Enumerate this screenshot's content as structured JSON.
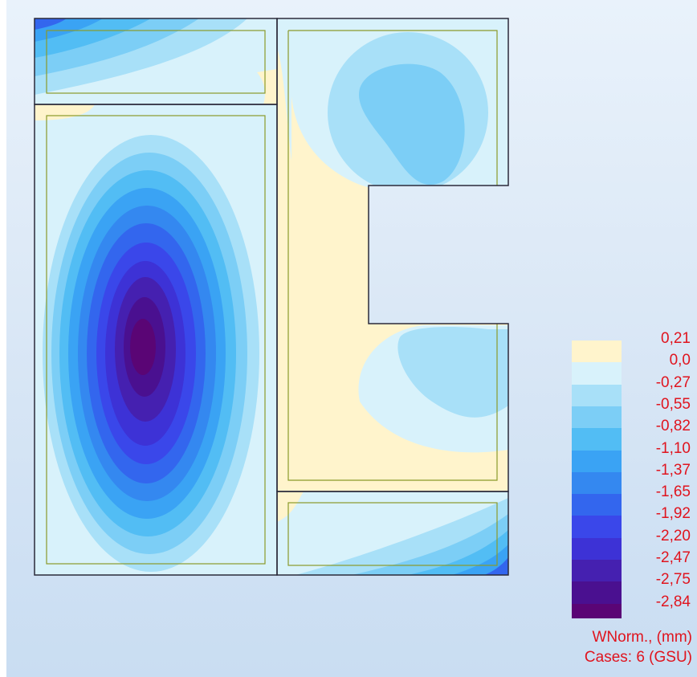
{
  "legend": {
    "levels": [
      "0,21",
      "0,0",
      "-0,27",
      "-0,55",
      "-0,82",
      "-1,10",
      "-1,37",
      "-1,65",
      "-1,92",
      "-2,20",
      "-2,47",
      "-2,75",
      "-2,84"
    ],
    "colors": [
      "#fff4cc",
      "#d8f2fb",
      "#a8e0f8",
      "#7ccef6",
      "#52bdf4",
      "#3aa3f4",
      "#3488f0",
      "#3366ee",
      "#3a47ea",
      "#3d32d6",
      "#4520b0",
      "#4a1090",
      "#5a0575"
    ],
    "quantity": "WNorm., (mm)",
    "cases": "Cases: 6 (GSU)"
  },
  "colors": {
    "positive": "#fff4cc",
    "near_zero": "#d8f2fb",
    "outline": "#2a2a3a",
    "inner_outline": "#8a9a2a",
    "label_red": "#e0141e"
  }
}
